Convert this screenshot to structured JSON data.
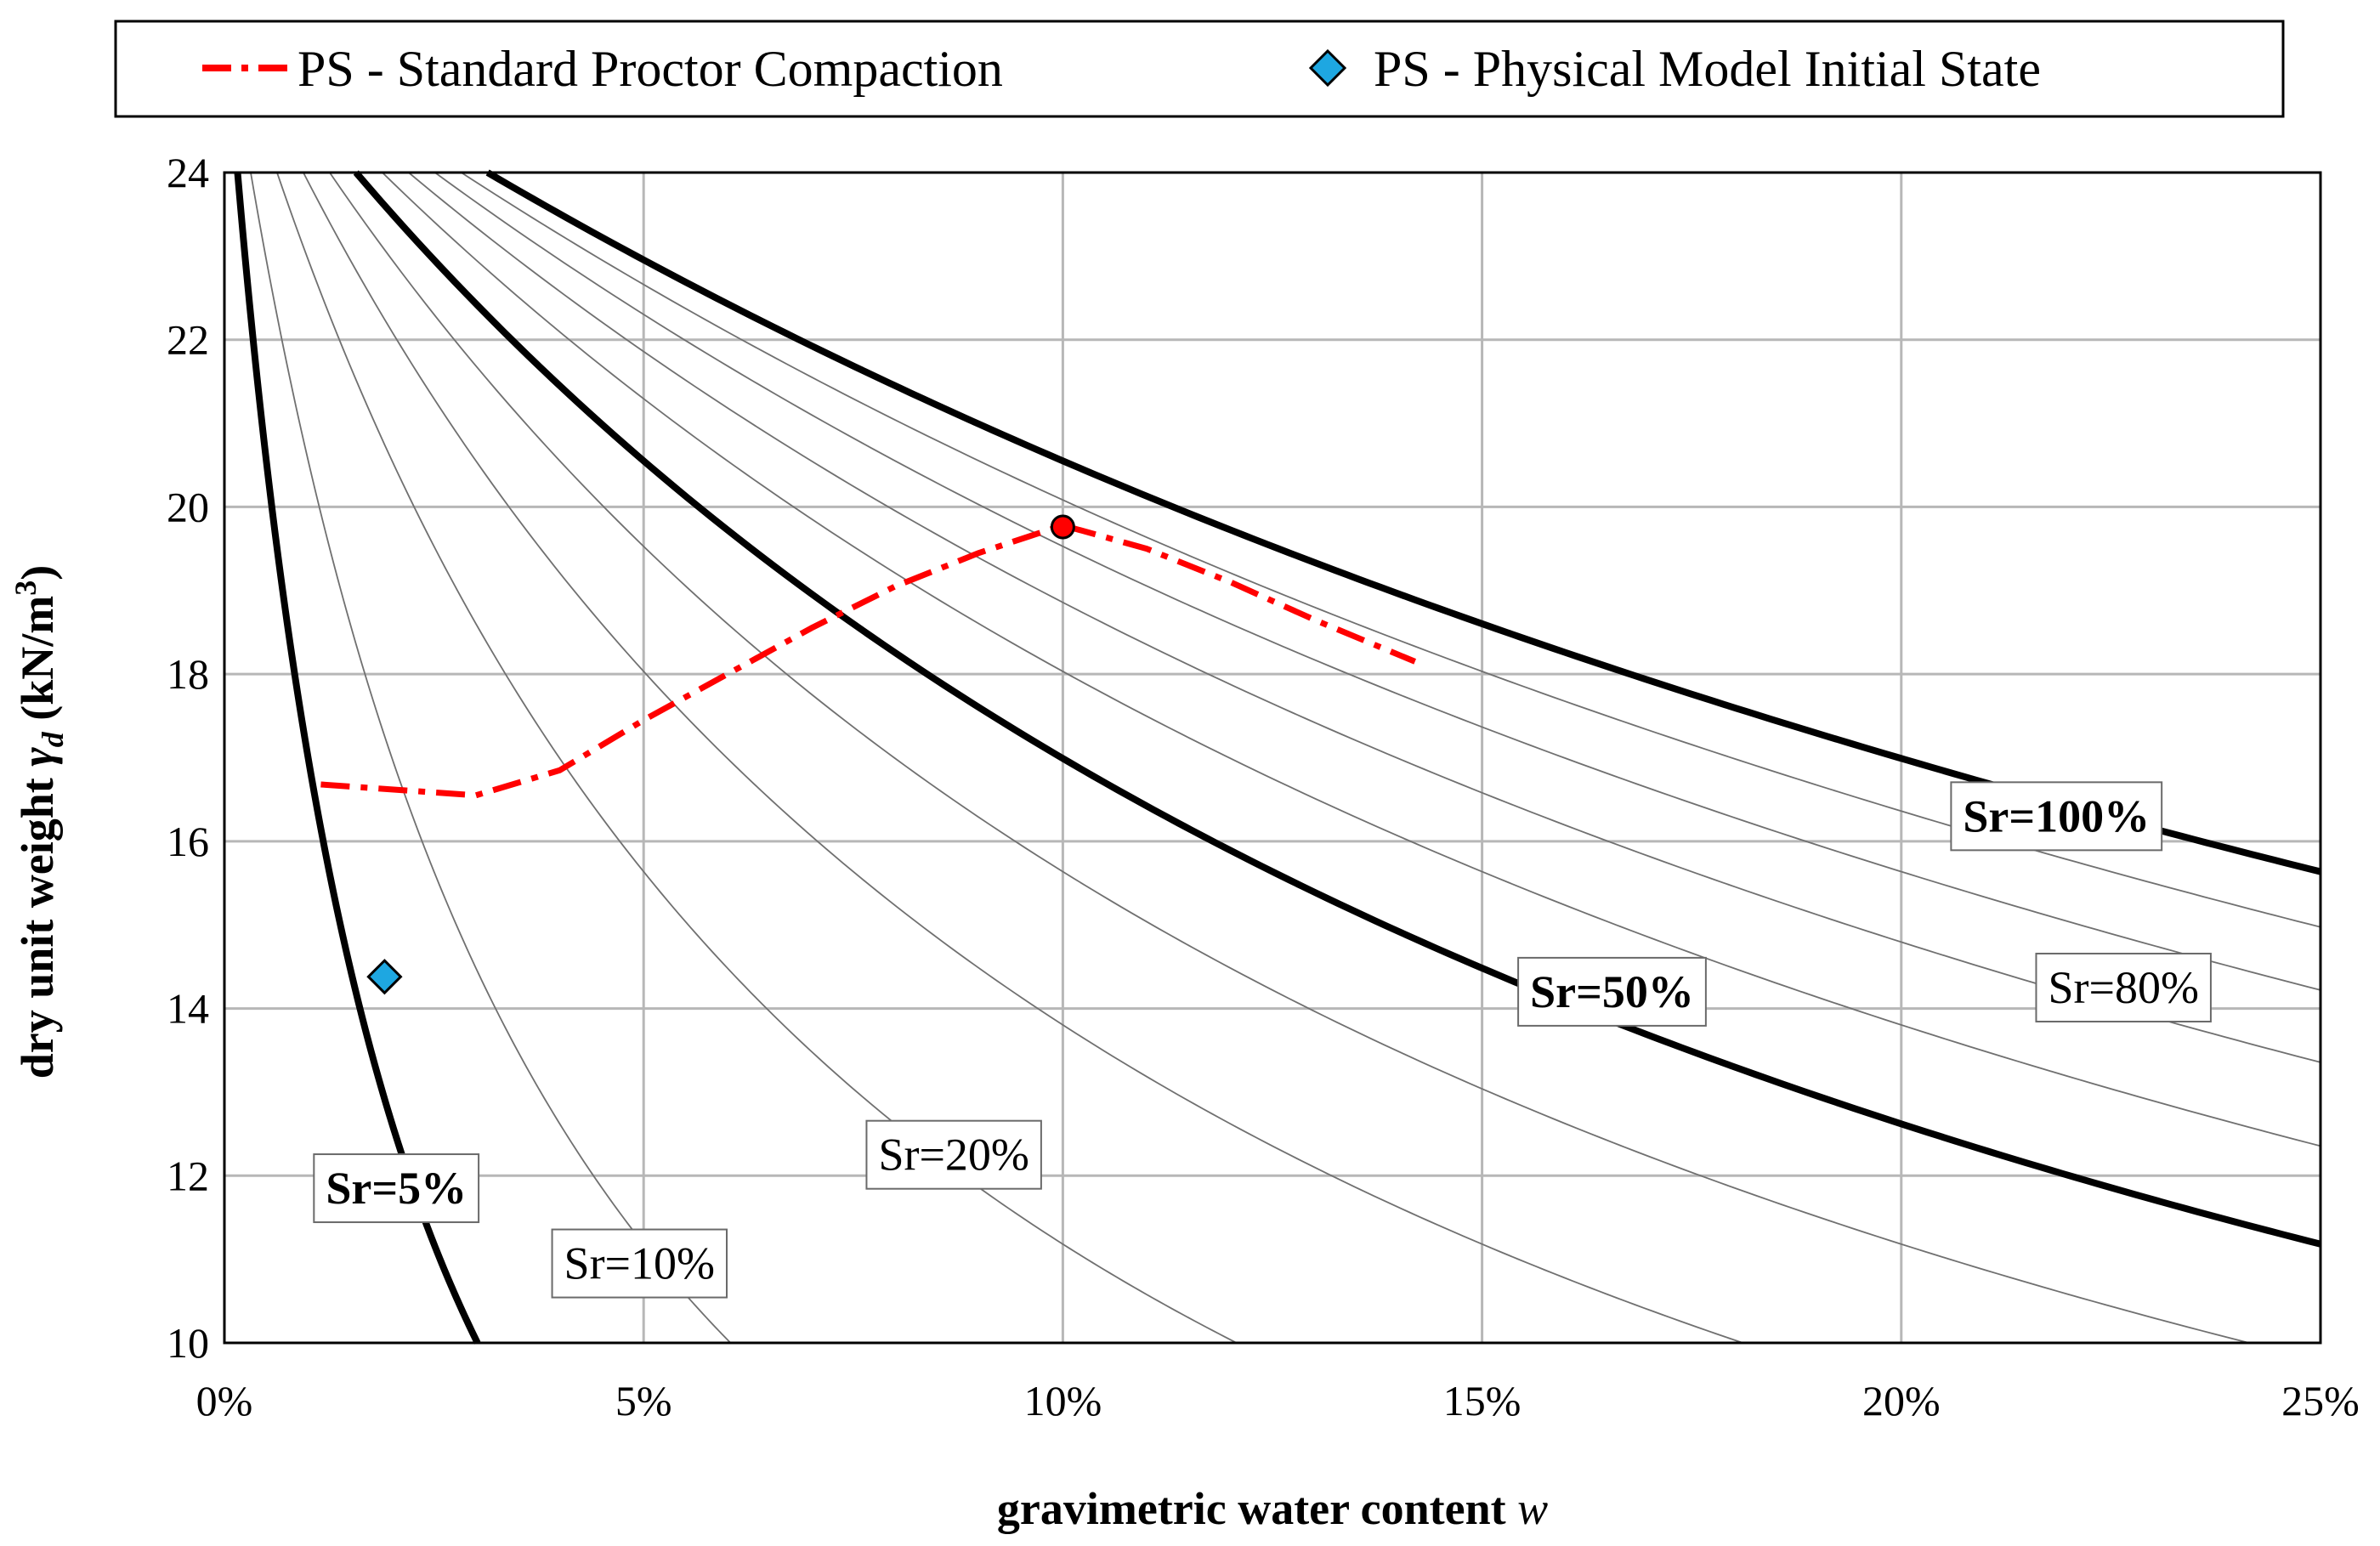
{
  "chart_data": {
    "type": "line",
    "title": "",
    "xlabel": "gravimetric water content",
    "xlabel_symbol": "w",
    "ylabel_prefix": "dry unit weight",
    "ylabel_symbol": "γ",
    "ylabel_subscript": "d",
    "ylabel_units": "(kN/m",
    "ylabel_units_sup": "3",
    "ylabel_units_close": ")",
    "xlim": [
      0,
      0.25
    ],
    "ylim": [
      10,
      24
    ],
    "x_ticks": [
      0,
      0.05,
      0.1,
      0.15,
      0.2,
      0.25
    ],
    "x_tick_labels": [
      "0%",
      "5%",
      "10%",
      "15%",
      "20%",
      "25%"
    ],
    "y_ticks": [
      10,
      12,
      14,
      16,
      18,
      20,
      22,
      24
    ],
    "y_tick_labels": [
      "10",
      "12",
      "14",
      "16",
      "18",
      "20",
      "22",
      "24"
    ],
    "grid": true,
    "saturation_curves": {
      "gamma_w": 9.81,
      "Gs": 2.65,
      "levels": [
        5,
        10,
        20,
        30,
        40,
        50,
        60,
        70,
        80,
        90,
        100
      ],
      "bold_levels": [
        5,
        50,
        100
      ],
      "labels": [
        {
          "level": 5,
          "text": "Sr=5%",
          "bold": true,
          "at_w": 0.0205,
          "at_gd": 11.85
        },
        {
          "level": 10,
          "text": "Sr=10%",
          "bold": false,
          "at_w": 0.0495,
          "at_gd": 10.95
        },
        {
          "level": 20,
          "text": "Sr=20%",
          "bold": false,
          "at_w": 0.087,
          "at_gd": 12.25
        },
        {
          "level": 50,
          "text": "Sr=50%",
          "bold": true,
          "at_w": 0.1655,
          "at_gd": 14.2
        },
        {
          "level": 80,
          "text": "Sr=80%",
          "bold": false,
          "at_w": 0.2265,
          "at_gd": 14.25
        },
        {
          "level": 100,
          "text": "Sr=100%",
          "bold": true,
          "at_w": 0.2185,
          "at_gd": 16.3
        }
      ]
    },
    "series": [
      {
        "name": "PS - Standard Proctor Compaction",
        "style": "dash-dot",
        "color": "#ff0000",
        "x": [
          0.0115,
          0.02,
          0.03,
          0.04,
          0.05,
          0.06,
          0.07,
          0.08,
          0.09,
          0.1,
          0.11,
          0.12,
          0.13,
          0.142
        ],
        "y": [
          16.68,
          16.62,
          16.55,
          16.85,
          17.45,
          18.0,
          18.55,
          19.05,
          19.45,
          19.78,
          19.5,
          19.1,
          18.65,
          18.15
        ]
      },
      {
        "name": "PS - Physical Model Initial State",
        "style": "marker-diamond",
        "color": "#1ea7e1",
        "x": [
          0.0191
        ],
        "y": [
          14.38
        ]
      }
    ],
    "optimum_point": {
      "x": 0.1,
      "y": 19.76,
      "color": "#ff0000"
    },
    "legend": {
      "placement": "top",
      "entries": [
        "PS - Standard Proctor Compaction",
        "PS - Physical Model Initial State"
      ]
    }
  }
}
